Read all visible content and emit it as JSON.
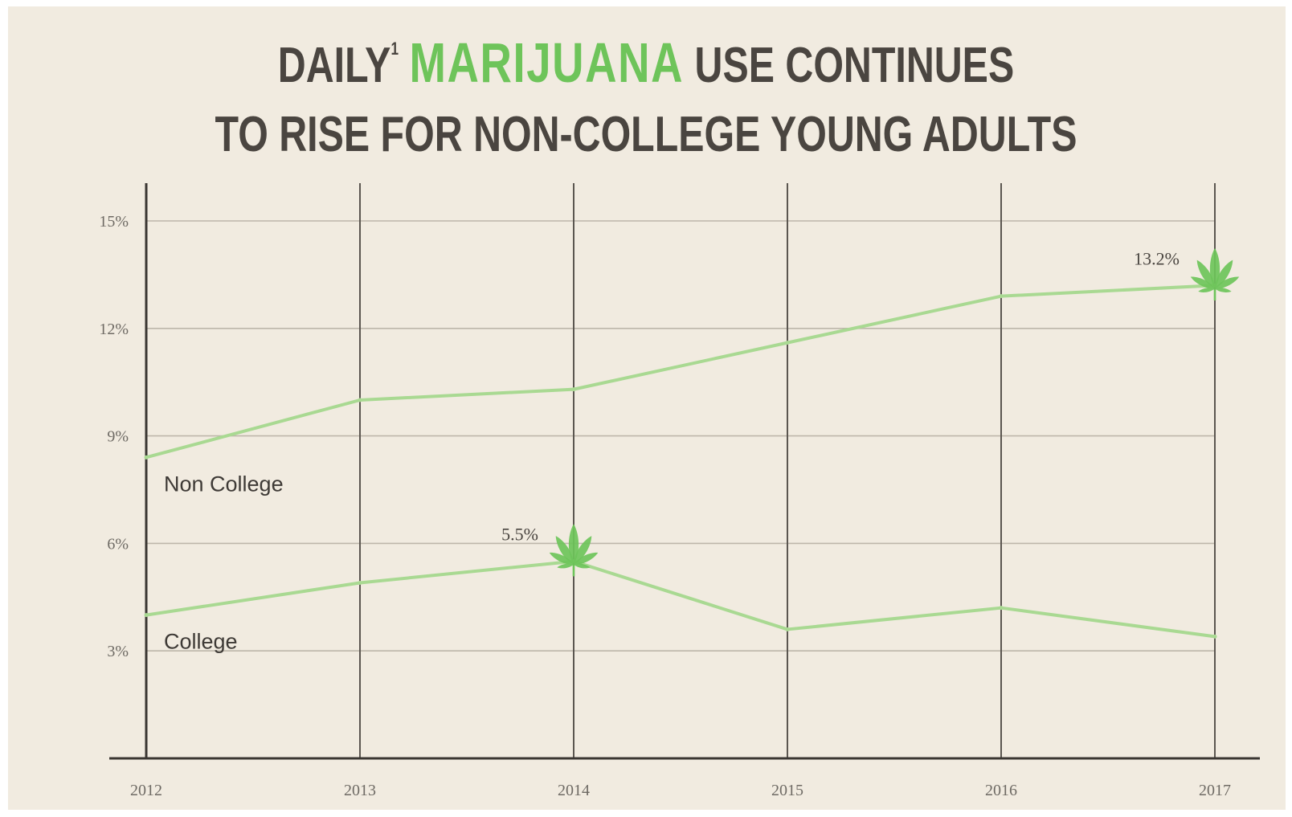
{
  "title": {
    "part1": "DAILY",
    "footnote_mark": "1",
    "highlight": "MARIJUANA",
    "part2": "USE CONTINUES",
    "line2": "TO RISE FOR NON-COLLEGE YOUNG ADULTS"
  },
  "colors": {
    "background": "#f1ebe0",
    "title_text": "#4a4540",
    "highlight": "#6ec45a",
    "series_line": "#a9d992",
    "grid": "#bdb6aa",
    "axis": "#3a3632",
    "leaf": "#6ec45a"
  },
  "chart_data": {
    "type": "line",
    "title": "DAILY MARIJUANA USE CONTINUES TO RISE FOR NON-COLLEGE YOUNG ADULTS",
    "x": [
      "2012",
      "2013",
      "2014",
      "2015",
      "2016",
      "2017"
    ],
    "y_ticks": [
      {
        "value": 3,
        "label": "3%"
      },
      {
        "value": 6,
        "label": "6%"
      },
      {
        "value": 9,
        "label": "9%"
      },
      {
        "value": 12,
        "label": "12%"
      },
      {
        "value": 15,
        "label": "15%"
      }
    ],
    "ylim": [
      0,
      16
    ],
    "grid": true,
    "series": [
      {
        "name": "Non College",
        "values": [
          8.4,
          10.0,
          10.3,
          11.6,
          12.9,
          13.2
        ]
      },
      {
        "name": "College",
        "values": [
          4.0,
          4.9,
          5.5,
          3.6,
          4.2,
          3.4
        ]
      }
    ],
    "annotations": [
      {
        "label": "5.5%",
        "series": "College",
        "x": "2014",
        "value": 5.5,
        "icon": "cannabis-leaf-icon"
      },
      {
        "label": "13.2%",
        "series": "Non College",
        "x": "2017",
        "value": 13.2,
        "icon": "cannabis-leaf-icon"
      }
    ]
  }
}
